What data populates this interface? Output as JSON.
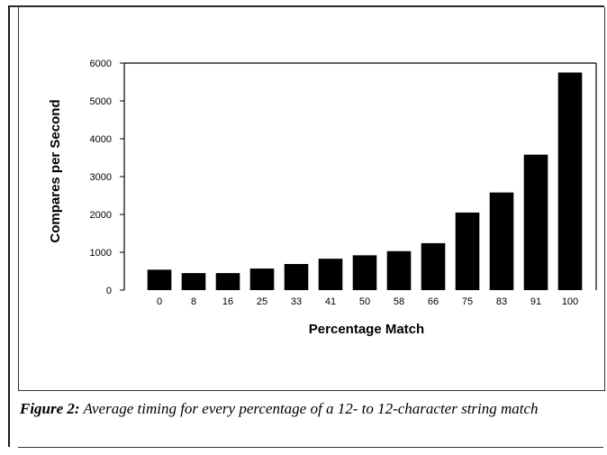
{
  "caption": {
    "lead": "Figure 2:",
    "text": "Average timing for every percentage of a 12- to 12-character string match"
  },
  "chart_data": {
    "type": "bar",
    "title": "",
    "xlabel": "Percentage Match",
    "ylabel": "Compares per Second",
    "categories": [
      "0",
      "8",
      "16",
      "25",
      "33",
      "41",
      "50",
      "58",
      "66",
      "75",
      "83",
      "91",
      "100"
    ],
    "values": [
      540,
      450,
      450,
      570,
      690,
      830,
      920,
      1030,
      1240,
      2050,
      2580,
      3580,
      5750
    ],
    "ylim": [
      0,
      6000
    ],
    "yticks": [
      "0",
      "1000",
      "2000",
      "3000",
      "4000",
      "5000",
      "6000"
    ],
    "grid": false,
    "legend": "none",
    "bar_color": "#000000"
  }
}
